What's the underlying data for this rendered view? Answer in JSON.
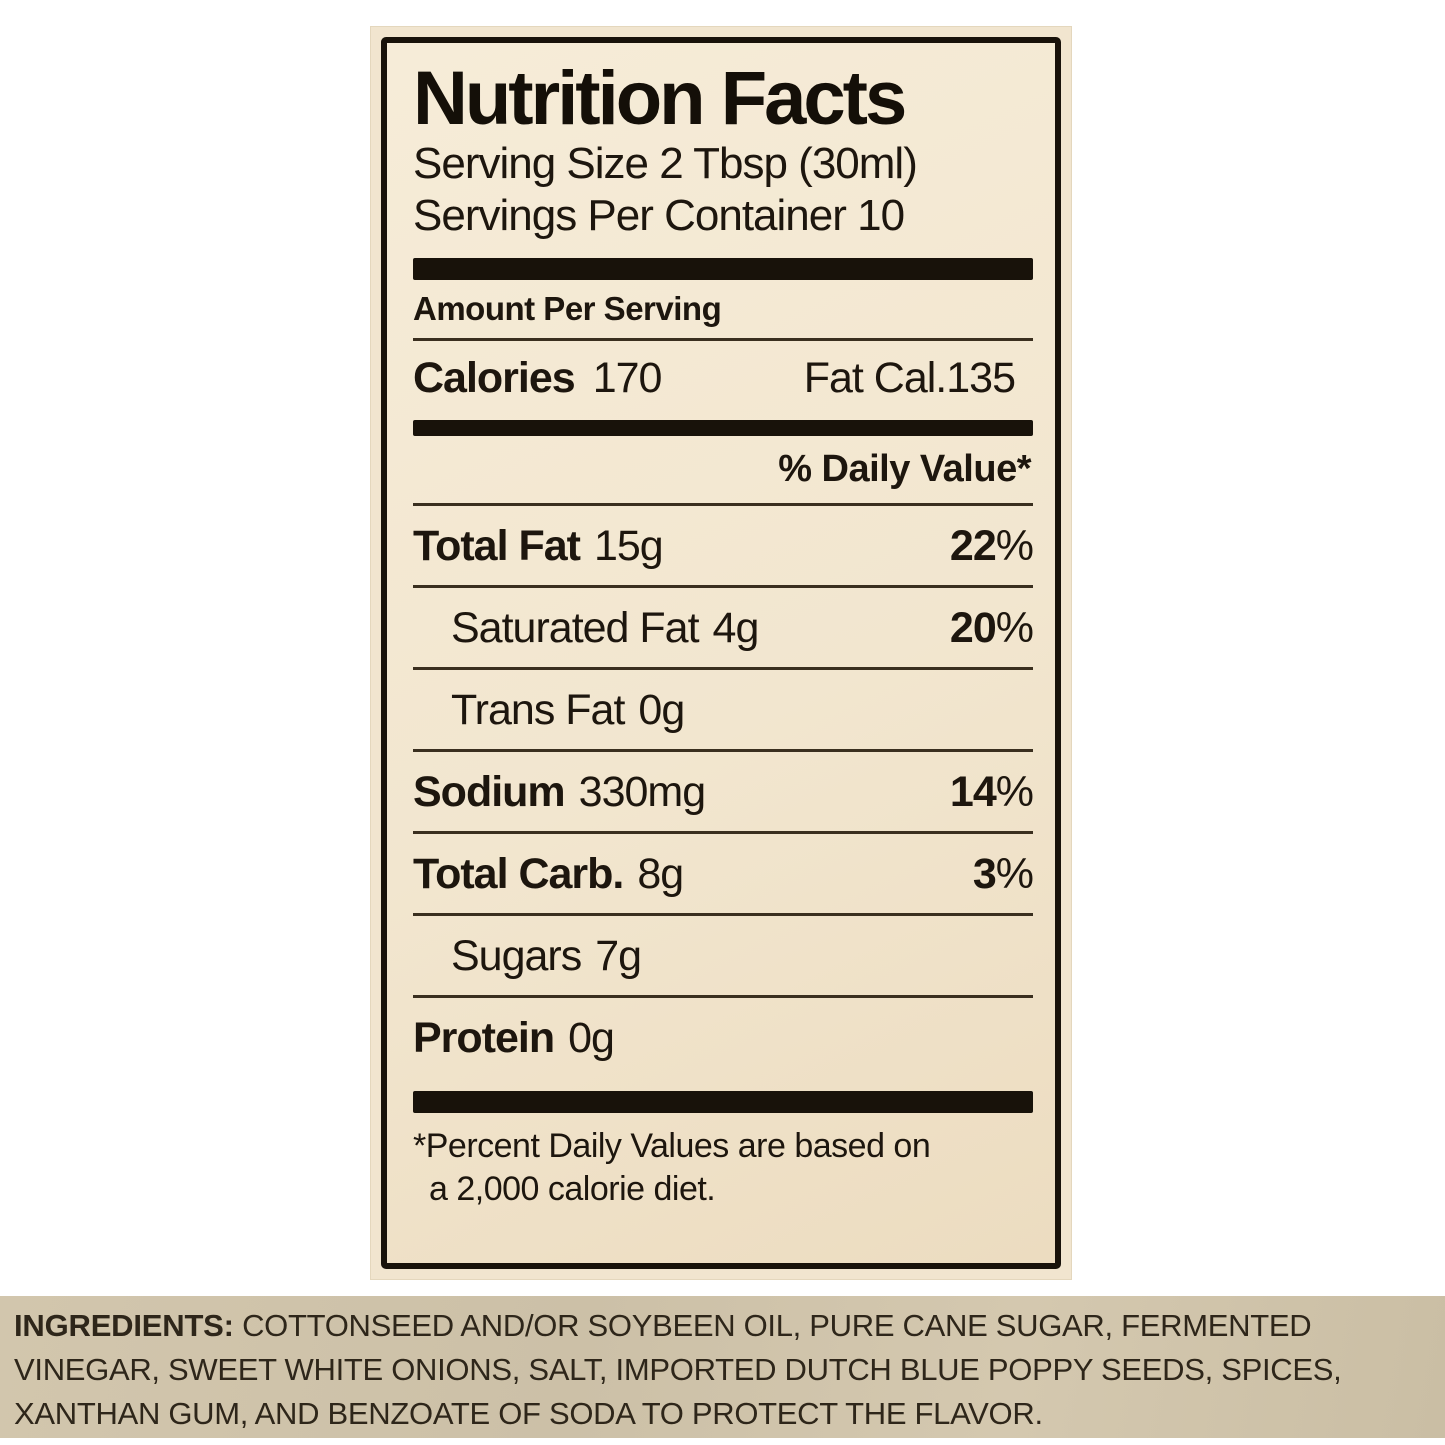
{
  "label": {
    "title": "Nutrition Facts",
    "serving_size": "Serving Size 2 Tbsp (30ml)",
    "servings_per_container": "Servings Per Container 10",
    "amount_per_serving": "Amount Per Serving",
    "calories_label": "Calories",
    "calories_value": "170",
    "fat_calories": "Fat Cal.135",
    "daily_value_header": "% Daily Value*",
    "percent_sign": "%",
    "rows": [
      {
        "name": "Total Fat",
        "amount": "15g",
        "dv": "22"
      },
      {
        "name": "Saturated Fat",
        "amount": "4g",
        "dv": "20"
      },
      {
        "name": "Trans Fat",
        "amount": "0g",
        "dv": ""
      },
      {
        "name": "Sodium",
        "amount": "330mg",
        "dv": "14"
      },
      {
        "name": "Total Carb.",
        "amount": "8g",
        "dv": "3"
      },
      {
        "name": "Sugars",
        "amount": "7g",
        "dv": ""
      },
      {
        "name": "Protein",
        "amount": "0g",
        "dv": ""
      }
    ],
    "footnote_lines": [
      "*Percent Daily Values are based on",
      "a 2,000 calorie diet."
    ]
  },
  "ingredients": {
    "prefix": "INGREDIENTS:",
    "line1_rest": " COTTONSEED AND/OR SOYBEEN OIL, PURE CANE SUGAR, FERMENTED",
    "line2": "VINEGAR, SWEET WHITE ONIONS, SALT, IMPORTED DUTCH BLUE POPPY SEEDS, SPICES,",
    "line3": "XANTHAN GUM, AND BENZOATE OF SODA TO PROTECT THE FLAVOR."
  },
  "colors": {
    "label_background": "#f1e5cf",
    "ink": "#18120a",
    "hairline": "#3a2f1f",
    "ingredients_strip_background": "#cec2a9"
  }
}
